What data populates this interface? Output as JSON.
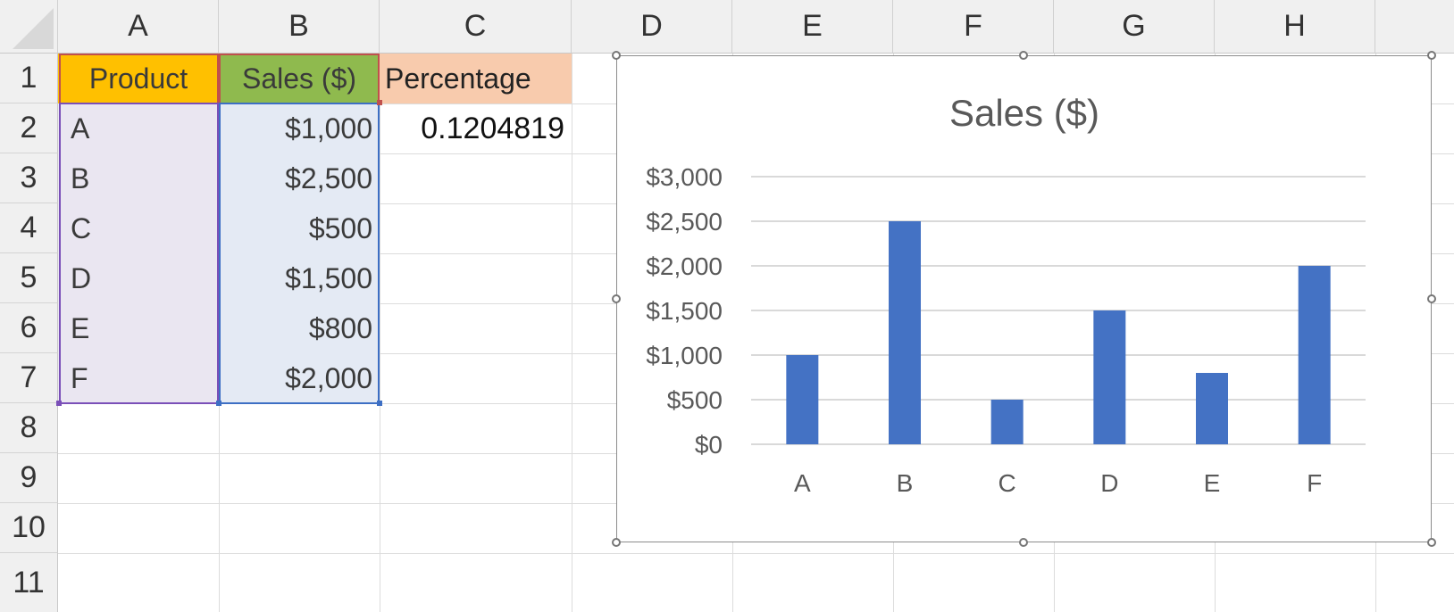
{
  "columns": [
    "A",
    "B",
    "C",
    "D",
    "E",
    "F",
    "G",
    "H"
  ],
  "rows": [
    "1",
    "2",
    "3",
    "4",
    "5",
    "6",
    "7",
    "8",
    "9",
    "10",
    "11"
  ],
  "headers": {
    "product": "Product",
    "sales": "Sales ($)",
    "percentage": "Percentage"
  },
  "header_colors": {
    "product": "#ffc000",
    "sales": "#8fba4e",
    "percentage": "#f8cbad"
  },
  "data_rows": [
    {
      "product": "A",
      "sales": "$1,000"
    },
    {
      "product": "B",
      "sales": "$2,500"
    },
    {
      "product": "C",
      "sales": "$500"
    },
    {
      "product": "D",
      "sales": "$1,500"
    },
    {
      "product": "E",
      "sales": "$800"
    },
    {
      "product": "F",
      "sales": "$2,000"
    }
  ],
  "percentage_value": "0.1204819",
  "range_colors": {
    "product": "#eae6f1",
    "sales": "#e4eaf4"
  },
  "chart_data": {
    "type": "bar",
    "title": "Sales ($)",
    "categories": [
      "A",
      "B",
      "C",
      "D",
      "E",
      "F"
    ],
    "values": [
      1000,
      2500,
      500,
      1500,
      800,
      2000
    ],
    "ylim": [
      0,
      3000
    ],
    "yticks": [
      0,
      500,
      1000,
      1500,
      2000,
      2500,
      3000
    ],
    "ytick_labels": [
      "$0",
      "$500",
      "$1,000",
      "$1,500",
      "$2,000",
      "$2,500",
      "$3,000"
    ],
    "bar_color": "#4472c4",
    "grid": true,
    "legend": "none"
  }
}
